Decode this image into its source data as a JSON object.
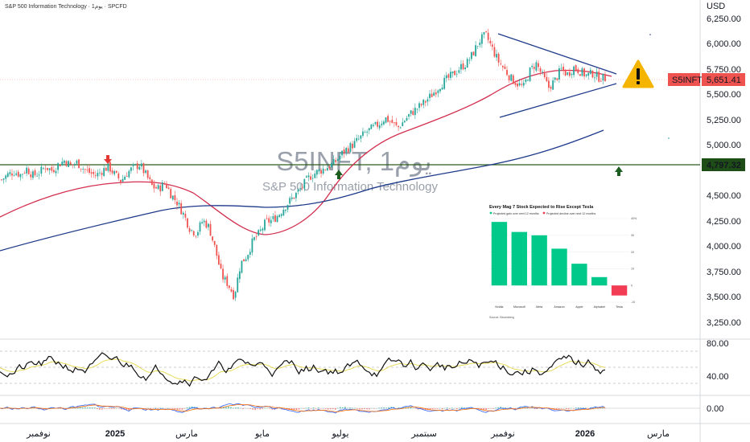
{
  "header": {
    "symbol_text": "S&P 500 Information Technology · 1يوم · SPCFD"
  },
  "watermark": {
    "symbol": "S5INFT, 1يوم",
    "name": "S&P 500 Information Technology"
  },
  "currency": "USD",
  "price_label": {
    "ticker": "S5INFT",
    "value": "5,651.41"
  },
  "level_label": "4,797.32",
  "x_axis_labels": [
    "نوفمبر",
    "2025",
    "مارس",
    "مايو",
    "يوليو",
    "سبتمبر",
    "نوفمبر",
    "2026",
    "مارس"
  ],
  "y_axis_labels": [
    "6,250.00",
    "6,000.00",
    "5,750.00",
    "5,500.00",
    "5,250.00",
    "5,000.00",
    "4,500.00",
    "4,250.00",
    "4,000.00",
    "3,750.00",
    "3,500.00",
    "3,250.00"
  ],
  "rsi_axis_labels": [
    "80.00",
    "40.00"
  ],
  "macd_axis_labels": [
    "0.00"
  ],
  "colors": {
    "up": "#26a69a",
    "down": "#ef5350",
    "ma_fast": "#d32f4f",
    "ma_slow": "#1e3a8a",
    "level": "#2e5e1e",
    "price_badge": "#ef5350",
    "level_badge": "#1f4d17",
    "warning": "#f5b400"
  },
  "icons": [
    "warning-icon",
    "arrow-down-icon",
    "arrow-up-icon"
  ],
  "chart_data": {
    "type": "candlestick",
    "title": "S5INFT, 1يوم",
    "subtitle": "S&P 500 Information Technology",
    "ylim": [
      3250,
      6250
    ],
    "level": 4797.32,
    "last": 5651.41,
    "close_path": [
      4650,
      4700,
      4730,
      4700,
      4760,
      4690,
      4720,
      4780,
      4740,
      4800,
      4840,
      4790,
      4820,
      4760,
      4720,
      4690,
      4740,
      4780,
      4700,
      4640,
      4720,
      4770,
      4800,
      4690,
      4580,
      4560,
      4620,
      4500,
      4420,
      4300,
      4160,
      4120,
      4250,
      4180,
      3960,
      3700,
      3620,
      3500,
      3820,
      3900,
      4050,
      4120,
      4230,
      4250,
      4300,
      4380,
      4450,
      4520,
      4600,
      4680,
      4720,
      4750,
      4780,
      4820,
      4900,
      4960,
      5000,
      5060,
      5120,
      5160,
      5200,
      5260,
      5220,
      5160,
      5230,
      5300,
      5350,
      5400,
      5460,
      5530,
      5600,
      5650,
      5700,
      5760,
      5800,
      5900,
      6020,
      6080,
      5950,
      5820,
      5740,
      5650,
      5600,
      5560,
      5720,
      5800,
      5680,
      5560,
      5630,
      5740,
      5690,
      5760,
      5720,
      5680,
      5700,
      5660,
      5651
    ],
    "rsi": {
      "ylim": [
        20,
        90
      ],
      "overbought": 70,
      "oversold": 30
    },
    "macd": {
      "zero": 0
    },
    "inset": {
      "type": "bar",
      "title": "Every Mag 7 Stock Expected to Rise Except Tesla",
      "legend": [
        "Projected gain over next 12 months",
        "Projected decline over next 12 months"
      ],
      "categories": [
        "Nvidia",
        "Microsoft",
        "Meta",
        "Amazon",
        "Apple",
        "Alphabet",
        "Tesla"
      ],
      "values": [
        38,
        32,
        30,
        22,
        13,
        5,
        -6
      ],
      "y_ticks": [
        "40%",
        "30",
        "20",
        "10",
        "0",
        "-10"
      ],
      "ylim": [
        -10,
        40
      ],
      "source": "Source: Bloomberg"
    }
  }
}
